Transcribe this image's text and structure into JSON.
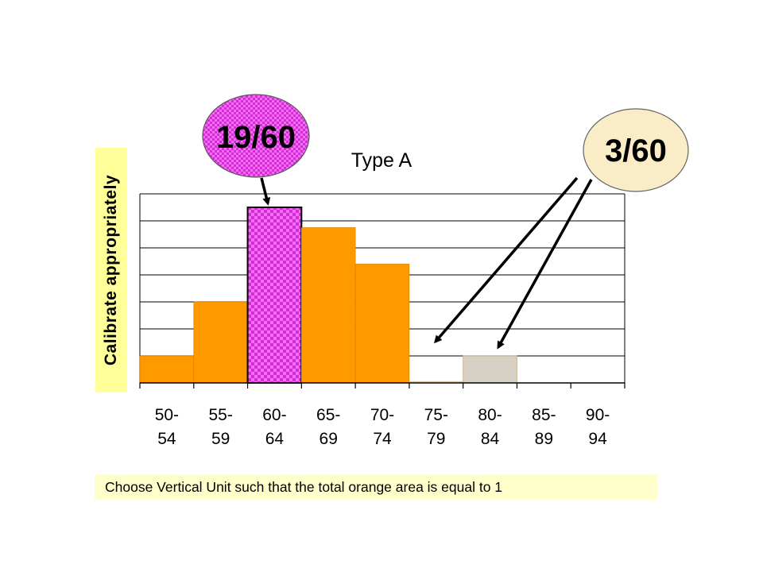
{
  "chart_data": {
    "type": "bar",
    "title": "Type A",
    "categories": [
      "50-54",
      "55-59",
      "60-64",
      "65-69",
      "70-74",
      "75-79",
      "80-84",
      "85-89",
      "90-94"
    ],
    "category_lines": [
      [
        "50-",
        "54"
      ],
      [
        "55-",
        "59"
      ],
      [
        "60-",
        "64"
      ],
      [
        "65-",
        "69"
      ],
      [
        "70-",
        "74"
      ],
      [
        "75-",
        "79"
      ],
      [
        "80-",
        "84"
      ],
      [
        "85-",
        "89"
      ],
      [
        "90-",
        "94"
      ]
    ],
    "values": [
      1,
      3,
      6.5,
      5.75,
      4.4,
      0.05,
      1,
      0,
      0
    ],
    "ylim": [
      0,
      7
    ],
    "y_gridlines": 7,
    "grid": true,
    "bar_fills": [
      "orange",
      "orange",
      "checker-magenta",
      "orange",
      "orange",
      "cream",
      "gray",
      "none",
      "none"
    ]
  },
  "ylabel": "Calibrate appropriately",
  "callouts": {
    "left": {
      "text": "19/60",
      "target_category": "60-64"
    },
    "right": {
      "text": "3/60",
      "target_categories": [
        "75-79",
        "80-84"
      ]
    }
  },
  "note": "Choose Vertical Unit such that the total orange area is equal to 1",
  "colors": {
    "orange": "#ff9900",
    "magenta": "#cc33cc",
    "magenta_checker_alt": "#ff66ff",
    "cream": "#fff3d9",
    "gray_fill": "#d6d0c4",
    "right_callout": "#f9ecc6",
    "ylabel_bg": "#ffff99",
    "note_bg": "#ffffcc",
    "gridline": "#000000"
  }
}
